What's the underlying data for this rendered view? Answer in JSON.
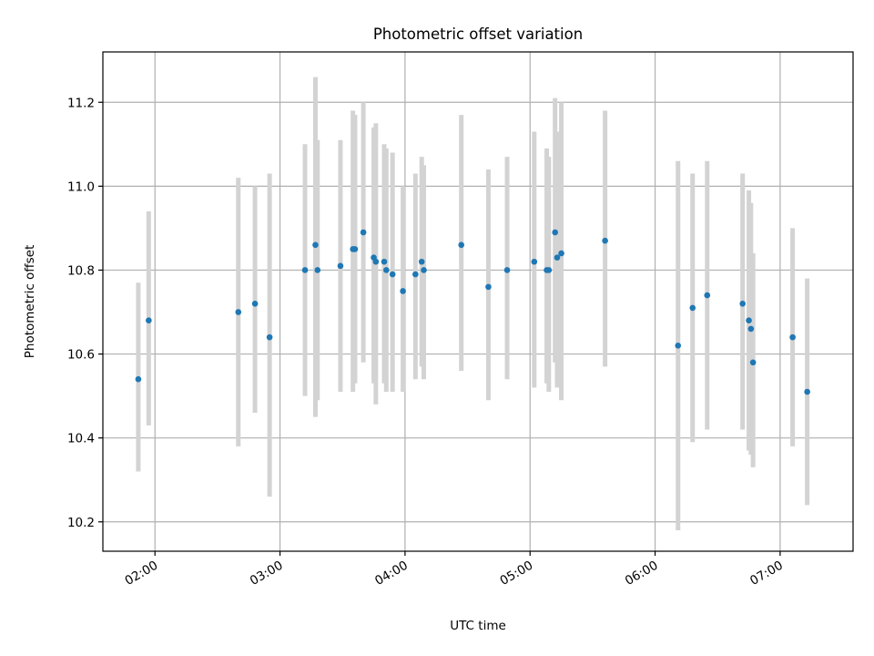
{
  "chart_data": {
    "type": "scatter",
    "title": "Photometric offset variation",
    "xlabel": "UTC time",
    "ylabel": "Photometric offset",
    "x_ticks": [
      "02:00",
      "03:00",
      "04:00",
      "05:00",
      "06:00",
      "07:00"
    ],
    "y_ticks": [
      "10.2",
      "10.4",
      "10.6",
      "10.8",
      "11.0",
      "11.2"
    ],
    "xlim": [
      "01:35",
      "07:35"
    ],
    "ylim": [
      10.13,
      11.32
    ],
    "grid": true,
    "colors": {
      "point": "#1f77b4",
      "errorbar": "#d3d3d3",
      "grid": "#b0b0b0"
    },
    "points": [
      {
        "x": "01:52",
        "y": 10.54,
        "lo": 10.32,
        "hi": 10.77
      },
      {
        "x": "01:57",
        "y": 10.68,
        "lo": 10.43,
        "hi": 10.94
      },
      {
        "x": "02:40",
        "y": 10.7,
        "lo": 10.38,
        "hi": 11.02
      },
      {
        "x": "02:48",
        "y": 10.72,
        "lo": 10.46,
        "hi": 11.0
      },
      {
        "x": "02:55",
        "y": 10.64,
        "lo": 10.26,
        "hi": 11.03
      },
      {
        "x": "03:12",
        "y": 10.8,
        "lo": 10.5,
        "hi": 11.1
      },
      {
        "x": "03:17",
        "y": 10.86,
        "lo": 10.45,
        "hi": 11.26
      },
      {
        "x": "03:18",
        "y": 10.8,
        "lo": 10.49,
        "hi": 11.11
      },
      {
        "x": "03:29",
        "y": 10.81,
        "lo": 10.51,
        "hi": 11.11
      },
      {
        "x": "03:35",
        "y": 10.85,
        "lo": 10.51,
        "hi": 11.18
      },
      {
        "x": "03:36",
        "y": 10.85,
        "lo": 10.53,
        "hi": 11.17
      },
      {
        "x": "03:40",
        "y": 10.89,
        "lo": 10.58,
        "hi": 11.2
      },
      {
        "x": "03:45",
        "y": 10.83,
        "lo": 10.53,
        "hi": 11.14
      },
      {
        "x": "03:46",
        "y": 10.82,
        "lo": 10.48,
        "hi": 11.15
      },
      {
        "x": "03:50",
        "y": 10.82,
        "lo": 10.53,
        "hi": 11.1
      },
      {
        "x": "03:51",
        "y": 10.8,
        "lo": 10.51,
        "hi": 11.09
      },
      {
        "x": "03:54",
        "y": 10.79,
        "lo": 10.51,
        "hi": 11.08
      },
      {
        "x": "03:59",
        "y": 10.75,
        "lo": 10.51,
        "hi": 11.0
      },
      {
        "x": "04:05",
        "y": 10.79,
        "lo": 10.54,
        "hi": 11.03
      },
      {
        "x": "04:08",
        "y": 10.82,
        "lo": 10.57,
        "hi": 11.07
      },
      {
        "x": "04:09",
        "y": 10.8,
        "lo": 10.54,
        "hi": 11.05
      },
      {
        "x": "04:27",
        "y": 10.86,
        "lo": 10.56,
        "hi": 11.17
      },
      {
        "x": "04:40",
        "y": 10.76,
        "lo": 10.49,
        "hi": 11.04
      },
      {
        "x": "04:49",
        "y": 10.8,
        "lo": 10.54,
        "hi": 11.07
      },
      {
        "x": "05:02",
        "y": 10.82,
        "lo": 10.52,
        "hi": 11.13
      },
      {
        "x": "05:08",
        "y": 10.8,
        "lo": 10.53,
        "hi": 11.09
      },
      {
        "x": "05:09",
        "y": 10.8,
        "lo": 10.51,
        "hi": 11.07
      },
      {
        "x": "05:12",
        "y": 10.89,
        "lo": 10.58,
        "hi": 11.21
      },
      {
        "x": "05:13",
        "y": 10.83,
        "lo": 10.52,
        "hi": 11.13
      },
      {
        "x": "05:15",
        "y": 10.84,
        "lo": 10.49,
        "hi": 11.2
      },
      {
        "x": "05:36",
        "y": 10.87,
        "lo": 10.57,
        "hi": 11.18
      },
      {
        "x": "06:11",
        "y": 10.62,
        "lo": 10.18,
        "hi": 11.06
      },
      {
        "x": "06:18",
        "y": 10.71,
        "lo": 10.39,
        "hi": 11.03
      },
      {
        "x": "06:25",
        "y": 10.74,
        "lo": 10.42,
        "hi": 11.06
      },
      {
        "x": "06:42",
        "y": 10.72,
        "lo": 10.42,
        "hi": 11.03
      },
      {
        "x": "06:45",
        "y": 10.68,
        "lo": 10.37,
        "hi": 10.99
      },
      {
        "x": "06:46",
        "y": 10.66,
        "lo": 10.36,
        "hi": 10.96
      },
      {
        "x": "06:47",
        "y": 10.58,
        "lo": 10.33,
        "hi": 10.84
      },
      {
        "x": "07:06",
        "y": 10.64,
        "lo": 10.38,
        "hi": 10.9
      },
      {
        "x": "07:13",
        "y": 10.51,
        "lo": 10.24,
        "hi": 10.78
      }
    ]
  }
}
